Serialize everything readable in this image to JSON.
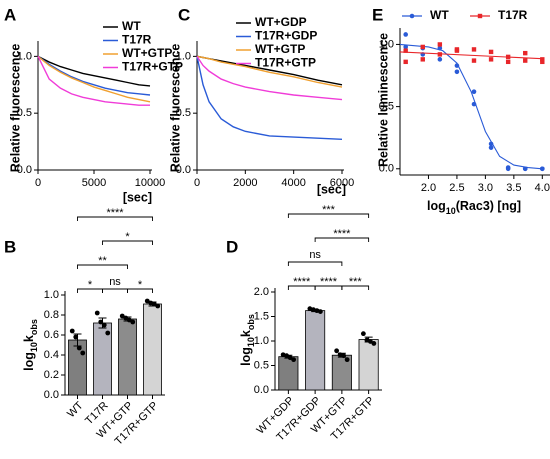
{
  "chart_data": [
    {
      "type": "line",
      "label": "A",
      "ylabel": "Relative fluorescence",
      "xlabel": "[sec]",
      "x": [
        0,
        1000,
        2000,
        3000,
        4000,
        5000,
        6000,
        7000,
        8000,
        9000,
        10000
      ],
      "xlim": [
        0,
        10000
      ],
      "xticks": [
        0,
        5000,
        10000
      ],
      "ylim": [
        0,
        1.1
      ],
      "yticks": [
        {
          "value": 0,
          "label": "0.0"
        },
        0.5,
        {
          "value": 1,
          "label": "1.0"
        }
      ],
      "series": [
        {
          "name": "WT",
          "color": "#000000",
          "values": [
            1.0,
            0.95,
            0.91,
            0.88,
            0.85,
            0.83,
            0.81,
            0.79,
            0.77,
            0.75,
            0.74
          ]
        },
        {
          "name": "T17R",
          "color": "#2a5bd7",
          "values": [
            1.0,
            0.93,
            0.87,
            0.82,
            0.78,
            0.75,
            0.72,
            0.7,
            0.68,
            0.67,
            0.66
          ]
        },
        {
          "name": "WT+GTP",
          "color": "#f0a030",
          "values": [
            1.0,
            0.92,
            0.86,
            0.81,
            0.77,
            0.73,
            0.7,
            0.67,
            0.64,
            0.62,
            0.6
          ]
        },
        {
          "name": "T17R+GTP",
          "color": "#f03cd8",
          "values": [
            1.0,
            0.8,
            0.72,
            0.67,
            0.64,
            0.62,
            0.6,
            0.59,
            0.58,
            0.57,
            0.57
          ]
        }
      ]
    },
    {
      "type": "line",
      "label": "C",
      "ylabel": "Relative fluorescence",
      "xlabel": "[sec]",
      "x": [
        0,
        250,
        500,
        1000,
        1500,
        2000,
        3000,
        4000,
        5000,
        6000
      ],
      "xlim": [
        0,
        6000
      ],
      "xticks": [
        0,
        2000,
        4000,
        6000
      ],
      "ylim": [
        0,
        1.1
      ],
      "yticks": [
        {
          "value": 0,
          "label": "0.0"
        },
        0.5,
        {
          "value": 1,
          "label": "1.0"
        }
      ],
      "series": [
        {
          "name": "WT+GDP",
          "color": "#000000",
          "values": [
            1.0,
            0.99,
            0.98,
            0.96,
            0.94,
            0.92,
            0.88,
            0.84,
            0.79,
            0.75
          ]
        },
        {
          "name": "T17R+GDP",
          "color": "#2a5bd7",
          "values": [
            1.0,
            0.75,
            0.6,
            0.45,
            0.38,
            0.34,
            0.3,
            0.29,
            0.28,
            0.27
          ]
        },
        {
          "name": "WT+GTP",
          "color": "#f0a030",
          "values": [
            1.0,
            0.99,
            0.98,
            0.95,
            0.93,
            0.91,
            0.86,
            0.82,
            0.77,
            0.73
          ]
        },
        {
          "name": "T17R+GTP",
          "color": "#f03cd8",
          "values": [
            1.0,
            0.92,
            0.87,
            0.8,
            0.76,
            0.73,
            0.69,
            0.66,
            0.64,
            0.62
          ]
        }
      ]
    },
    {
      "type": "scatter",
      "label": "E",
      "ylabel": "Relative luminescence",
      "xlabel_parts": [
        "log",
        "10",
        "(Rac3) [ng]"
      ],
      "xlim": [
        1.5,
        4.1
      ],
      "xticks": [
        {
          "value": 2,
          "label": "2.0"
        },
        2.5,
        {
          "value": 3,
          "label": "3.0"
        },
        3.5,
        {
          "value": 4,
          "label": "4.0"
        }
      ],
      "ylim": [
        -0.05,
        1.1
      ],
      "yticks": [
        {
          "value": 0,
          "label": "0.0"
        },
        0.5,
        {
          "value": 1,
          "label": "1.0"
        }
      ],
      "series": [
        {
          "name": "WT",
          "color": "#2a5bd7",
          "marker": "circle",
          "x": [
            1.6,
            1.6,
            1.9,
            1.9,
            2.2,
            2.2,
            2.5,
            2.5,
            2.8,
            2.8,
            3.1,
            3.1,
            3.4,
            3.4,
            3.7,
            3.7,
            4.0,
            4.0
          ],
          "values": [
            1.08,
            0.98,
            0.92,
            0.97,
            0.97,
            0.88,
            0.78,
            0.83,
            0.52,
            0.62,
            0.2,
            0.17,
            0.01,
            0,
            0,
            0,
            0,
            0
          ],
          "fit_x": [
            1.5,
            1.75,
            2.0,
            2.25,
            2.5,
            2.75,
            3.0,
            3.25,
            3.5,
            3.75,
            4.0
          ],
          "fit": [
            1.0,
            0.99,
            0.98,
            0.95,
            0.85,
            0.62,
            0.3,
            0.1,
            0.03,
            0.01,
            0
          ]
        },
        {
          "name": "T17R",
          "color": "#e8262a",
          "marker": "square",
          "x": [
            1.6,
            1.6,
            1.9,
            1.9,
            2.2,
            2.2,
            2.5,
            2.5,
            2.8,
            2.8,
            3.1,
            3.1,
            3.4,
            3.4,
            3.7,
            3.7,
            4.0,
            4.0
          ],
          "values": [
            0.95,
            0.86,
            0.98,
            0.88,
            1.0,
            0.92,
            0.95,
            0.96,
            0.96,
            0.87,
            0.88,
            0.94,
            0.9,
            0.86,
            0.93,
            0.87,
            0.88,
            0.86
          ],
          "fit_x": [
            1.5,
            4.0
          ],
          "fit": [
            0.94,
            0.885
          ]
        }
      ]
    },
    {
      "type": "bar",
      "label": "B",
      "ylabel_parts": [
        "log",
        "10",
        "k",
        "obs"
      ],
      "categories": [
        "WT",
        "T17R",
        "WT+GTP",
        "T17R+GTP"
      ],
      "values": [
        0.55,
        0.72,
        0.76,
        0.91
      ],
      "errors": [
        0.06,
        0.05,
        0.02,
        0.02
      ],
      "points": [
        [
          0.64,
          0.58,
          0.47,
          0.42
        ],
        [
          0.82,
          0.73,
          0.7,
          0.62
        ],
        [
          0.79,
          0.77,
          0.75,
          0.73
        ],
        [
          0.94,
          0.92,
          0.91,
          0.89
        ]
      ],
      "colors": [
        "#7f7f7f",
        "#b4b4be",
        "#8c8c8c",
        "#d4d4d4"
      ],
      "ylim": [
        0,
        1.0
      ],
      "yticks": [
        {
          "value": 0,
          "label": "0.0"
        },
        0.2,
        0.4,
        0.6,
        0.8,
        {
          "value": 1,
          "label": "1.0"
        }
      ],
      "brackets": [
        {
          "from": 0,
          "to": 1,
          "label": "*"
        },
        {
          "from": 1,
          "to": 2,
          "label": "ns"
        },
        {
          "from": 2,
          "to": 3,
          "label": "*"
        },
        {
          "from": 0,
          "to": 2,
          "label": "**"
        },
        {
          "from": 1,
          "to": 3,
          "label": "*"
        },
        {
          "from": 0,
          "to": 3,
          "label": "****"
        }
      ]
    },
    {
      "type": "bar",
      "label": "D",
      "ylabel_parts": [
        "log",
        "10",
        "k",
        "obs"
      ],
      "categories": [
        "WT+GDP",
        "T17R+GDP",
        "WT+GTP",
        "T17R+GTP"
      ],
      "values": [
        0.68,
        1.62,
        0.71,
        1.03
      ],
      "errors": [
        0.03,
        0.02,
        0.04,
        0.05
      ],
      "points": [
        [
          0.72,
          0.7,
          0.66,
          0.62
        ],
        [
          1.66,
          1.64,
          1.62,
          1.6
        ],
        [
          0.8,
          0.72,
          0.7,
          0.62
        ],
        [
          1.15,
          1.02,
          0.99,
          0.95
        ]
      ],
      "colors": [
        "#7f7f7f",
        "#b4b4be",
        "#8c8c8c",
        "#d4d4d4"
      ],
      "ylim": [
        0,
        2.0
      ],
      "yticks": [
        {
          "value": 0,
          "label": "0.0"
        },
        0.5,
        {
          "value": 1,
          "label": "1.0"
        },
        1.5,
        {
          "value": 2,
          "label": "2.0"
        }
      ],
      "brackets": [
        {
          "from": 0,
          "to": 1,
          "label": "****"
        },
        {
          "from": 1,
          "to": 2,
          "label": "****"
        },
        {
          "from": 2,
          "to": 3,
          "label": "***"
        },
        {
          "from": 0,
          "to": 2,
          "label": "ns"
        },
        {
          "from": 1,
          "to": 3,
          "label": "****"
        },
        {
          "from": 0,
          "to": 3,
          "label": "***"
        }
      ]
    }
  ]
}
